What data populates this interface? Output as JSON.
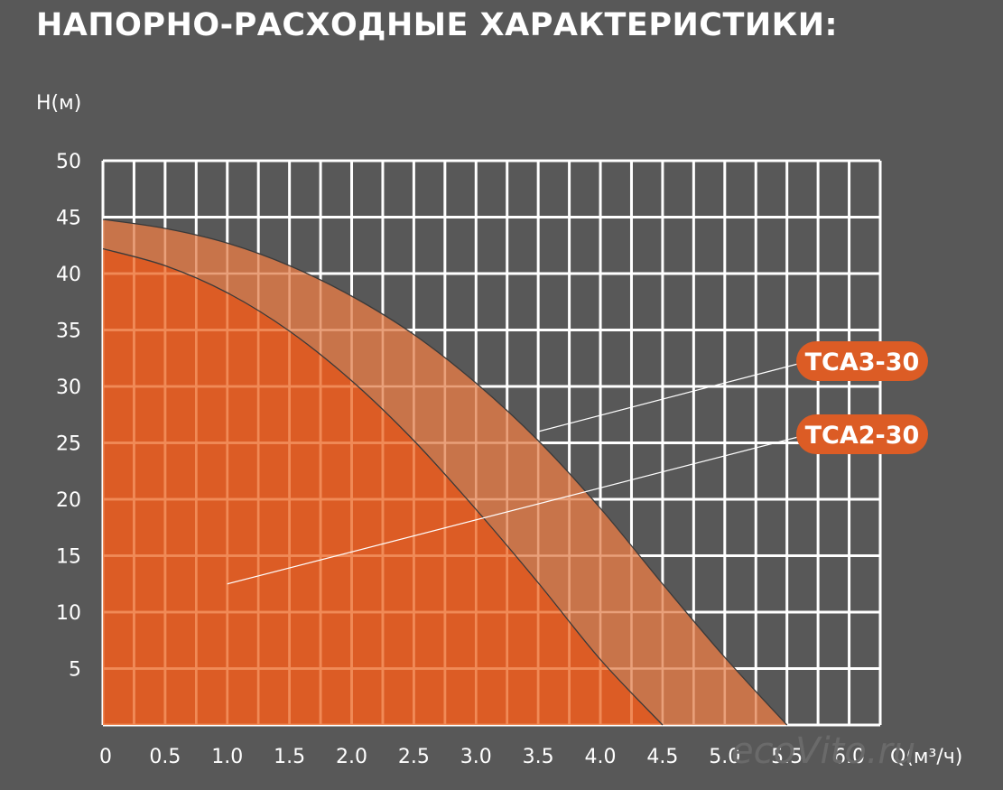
{
  "chart_data": {
    "type": "area",
    "title": "НАПОРНО-РАСХОДНЫЕ ХАРАКТЕРИСТИКИ:",
    "ylabel": "H(м)",
    "xlabel": "Q(м³/ч)",
    "x_ticks": [
      "0",
      "0.5",
      "1.0",
      "1.5",
      "2.0",
      "2.5",
      "3.0",
      "3.5",
      "4.0",
      "4.5",
      "5.0",
      "5.5",
      "6.0"
    ],
    "y_ticks": [
      "5",
      "10",
      "15",
      "20",
      "25",
      "30",
      "35",
      "40",
      "45",
      "50"
    ],
    "xlim": [
      0,
      6.25
    ],
    "ylim": [
      0,
      50
    ],
    "grid": true,
    "series": [
      {
        "name": "TCA3-30",
        "color": "#c8744a",
        "x": [
          0,
          0.5,
          1.0,
          1.5,
          2.0,
          2.5,
          3.0,
          3.5,
          4.0,
          4.5,
          5.0,
          5.5
        ],
        "y": [
          44.8,
          44.0,
          42.7,
          40.7,
          38.0,
          34.6,
          30.3,
          25.2,
          19.2,
          12.5,
          6.0,
          0
        ]
      },
      {
        "name": "TCA2-30",
        "color": "#dc5c25",
        "x": [
          0,
          0.5,
          1.0,
          1.5,
          2.0,
          2.5,
          3.0,
          3.5,
          4.0,
          4.5
        ],
        "y": [
          42.2,
          40.7,
          38.3,
          34.9,
          30.5,
          25.2,
          19.1,
          12.6,
          5.8,
          0
        ]
      }
    ],
    "annotations": [
      {
        "label": "TCA3-30",
        "points_to": {
          "x": 3.5,
          "y": 26
        }
      },
      {
        "label": "TCA2-30",
        "points_to": {
          "x": 1.0,
          "y": 12.5
        }
      }
    ]
  },
  "watermark": "ecoVito.ru"
}
